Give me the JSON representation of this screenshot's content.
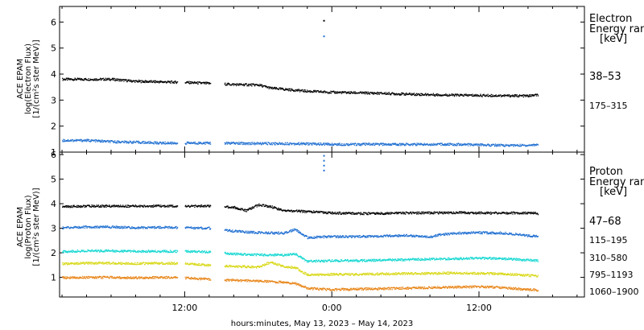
{
  "x_axis": {
    "label": "hours:minutes, May 13, 2023 – May 14, 2023",
    "ticks": [
      {
        "label": "12:00",
        "hour": 12
      },
      {
        "label": "0:00",
        "hour": 24
      },
      {
        "label": "12:00",
        "hour": 36
      }
    ],
    "range_hours": [
      1.8,
      44.6
    ]
  },
  "colors": {
    "axes": "#000000",
    "black": "#000000",
    "blue": "#1f6fd1",
    "cyan": "#17d8d2",
    "yellow": "#d8d817",
    "orange": "#e8861a"
  },
  "chart_data": [
    {
      "type": "scatter",
      "panel": "electron",
      "ylabel_lines": [
        "ACE EPAM",
        "log(Electron Flux)",
        "[1/(cm²s ster MeV)]"
      ],
      "ylim": [
        1,
        6.6
      ],
      "yticks": [
        1,
        2,
        3,
        4,
        5,
        6
      ],
      "legend_title": [
        "Electron",
        "Energy ran",
        "[keV]"
      ],
      "data_gaps_hours": [
        [
          11.4,
          12.0
        ],
        [
          14.1,
          15.2
        ]
      ],
      "series": [
        {
          "name": "38–53",
          "color": "black",
          "points": [
            [
              2.0,
              3.8
            ],
            [
              4,
              3.8
            ],
            [
              6,
              3.8
            ],
            [
              8,
              3.72
            ],
            [
              10,
              3.7
            ],
            [
              12,
              3.68
            ],
            [
              14,
              3.64
            ],
            [
              16,
              3.6
            ],
            [
              18,
              3.58
            ],
            [
              19,
              3.46
            ],
            [
              21,
              3.38
            ],
            [
              22,
              3.34
            ],
            [
              24,
              3.3
            ],
            [
              26,
              3.28
            ],
            [
              28,
              3.26
            ],
            [
              30,
              3.23
            ],
            [
              32,
              3.21
            ],
            [
              34,
              3.19
            ],
            [
              36,
              3.18
            ],
            [
              38,
              3.17
            ],
            [
              40,
              3.16
            ],
            [
              40.8,
              3.2
            ]
          ]
        },
        {
          "name": "175–315",
          "color": "blue",
          "points": [
            [
              2.0,
              1.45
            ],
            [
              4,
              1.45
            ],
            [
              6,
              1.4
            ],
            [
              8,
              1.38
            ],
            [
              10,
              1.35
            ],
            [
              12,
              1.35
            ],
            [
              14,
              1.35
            ],
            [
              16,
              1.34
            ],
            [
              18,
              1.33
            ],
            [
              20,
              1.33
            ],
            [
              22,
              1.32
            ],
            [
              24,
              1.3
            ],
            [
              26,
              1.3
            ],
            [
              28,
              1.3
            ],
            [
              30,
              1.3
            ],
            [
              32,
              1.3
            ],
            [
              34,
              1.3
            ],
            [
              36,
              1.28
            ],
            [
              38,
              1.26
            ],
            [
              40,
              1.26
            ],
            [
              40.8,
              1.3
            ]
          ]
        }
      ],
      "spikes": [
        {
          "hour": 23.3,
          "values": [
            6.05,
            5.45
          ]
        }
      ]
    },
    {
      "type": "scatter",
      "panel": "proton",
      "ylabel_lines": [
        "ACE EPAM",
        "log(Proton Flux)",
        "[1/(cm²s ster MeV)]"
      ],
      "ylim": [
        0.2,
        6.1
      ],
      "yticks": [
        1,
        2,
        3,
        4,
        5,
        6
      ],
      "legend_title": [
        "Proton",
        "Energy ran",
        "[keV]"
      ],
      "data_gaps_hours": [
        [
          11.4,
          12.0
        ],
        [
          14.1,
          15.2
        ]
      ],
      "series": [
        {
          "name": "47–68",
          "color": "black",
          "points": [
            [
              2.0,
              3.88
            ],
            [
              4,
              3.9
            ],
            [
              6,
              3.9
            ],
            [
              8,
              3.9
            ],
            [
              10,
              3.9
            ],
            [
              12,
              3.9
            ],
            [
              14,
              3.9
            ],
            [
              16,
              3.85
            ],
            [
              17,
              3.72
            ],
            [
              18,
              3.95
            ],
            [
              19,
              3.88
            ],
            [
              20,
              3.72
            ],
            [
              22,
              3.68
            ],
            [
              24,
              3.62
            ],
            [
              26,
              3.6
            ],
            [
              28,
              3.6
            ],
            [
              30,
              3.62
            ],
            [
              32,
              3.62
            ],
            [
              34,
              3.64
            ],
            [
              36,
              3.62
            ],
            [
              38,
              3.62
            ],
            [
              40,
              3.62
            ],
            [
              40.8,
              3.6
            ]
          ]
        },
        {
          "name": "115–195",
          "color": "blue",
          "points": [
            [
              2.0,
              3.02
            ],
            [
              4,
              3.05
            ],
            [
              6,
              3.05
            ],
            [
              8,
              3.02
            ],
            [
              10,
              3.04
            ],
            [
              12,
              3.02
            ],
            [
              14,
              3.0
            ],
            [
              16,
              2.88
            ],
            [
              18,
              2.82
            ],
            [
              20,
              2.8
            ],
            [
              21,
              2.95
            ],
            [
              22,
              2.62
            ],
            [
              24,
              2.66
            ],
            [
              26,
              2.66
            ],
            [
              28,
              2.68
            ],
            [
              30,
              2.7
            ],
            [
              32,
              2.65
            ],
            [
              33,
              2.75
            ],
            [
              34,
              2.8
            ],
            [
              36,
              2.82
            ],
            [
              38,
              2.8
            ],
            [
              40,
              2.7
            ],
            [
              40.8,
              2.66
            ]
          ]
        },
        {
          "name": "310–580",
          "color": "cyan",
          "points": [
            [
              2.0,
              2.05
            ],
            [
              4,
              2.08
            ],
            [
              6,
              2.08
            ],
            [
              8,
              2.06
            ],
            [
              10,
              2.06
            ],
            [
              12,
              2.06
            ],
            [
              14,
              2.04
            ],
            [
              16,
              1.95
            ],
            [
              18,
              1.92
            ],
            [
              20,
              1.9
            ],
            [
              21,
              1.95
            ],
            [
              22,
              1.65
            ],
            [
              24,
              1.68
            ],
            [
              26,
              1.68
            ],
            [
              28,
              1.7
            ],
            [
              30,
              1.72
            ],
            [
              32,
              1.74
            ],
            [
              34,
              1.76
            ],
            [
              36,
              1.78
            ],
            [
              38,
              1.76
            ],
            [
              40,
              1.7
            ],
            [
              40.8,
              1.68
            ]
          ]
        },
        {
          "name": "795–1193",
          "color": "yellow",
          "points": [
            [
              2.0,
              1.55
            ],
            [
              4,
              1.58
            ],
            [
              6,
              1.58
            ],
            [
              8,
              1.56
            ],
            [
              10,
              1.58
            ],
            [
              12,
              1.56
            ],
            [
              14,
              1.5
            ],
            [
              16,
              1.45
            ],
            [
              18,
              1.42
            ],
            [
              19,
              1.62
            ],
            [
              20,
              1.45
            ],
            [
              21,
              1.4
            ],
            [
              22,
              1.1
            ],
            [
              24,
              1.12
            ],
            [
              26,
              1.12
            ],
            [
              28,
              1.14
            ],
            [
              30,
              1.16
            ],
            [
              32,
              1.16
            ],
            [
              34,
              1.18
            ],
            [
              36,
              1.16
            ],
            [
              38,
              1.14
            ],
            [
              40,
              1.08
            ],
            [
              40.8,
              1.05
            ]
          ]
        },
        {
          "name": "1060–1900",
          "color": "orange",
          "points": [
            [
              2.0,
              0.98
            ],
            [
              4,
              1.0
            ],
            [
              6,
              1.0
            ],
            [
              8,
              0.98
            ],
            [
              10,
              1.0
            ],
            [
              12,
              0.98
            ],
            [
              14,
              0.92
            ],
            [
              16,
              0.88
            ],
            [
              18,
              0.85
            ],
            [
              20,
              0.8
            ],
            [
              21,
              0.75
            ],
            [
              22,
              0.55
            ],
            [
              24,
              0.5
            ],
            [
              26,
              0.52
            ],
            [
              28,
              0.54
            ],
            [
              30,
              0.56
            ],
            [
              32,
              0.58
            ],
            [
              34,
              0.6
            ],
            [
              36,
              0.62
            ],
            [
              38,
              0.58
            ],
            [
              40,
              0.5
            ],
            [
              40.8,
              0.48
            ]
          ]
        }
      ],
      "spikes": [
        {
          "hour": 23.3,
          "values": [
            5.95,
            5.75,
            5.55,
            5.35
          ]
        }
      ]
    }
  ]
}
